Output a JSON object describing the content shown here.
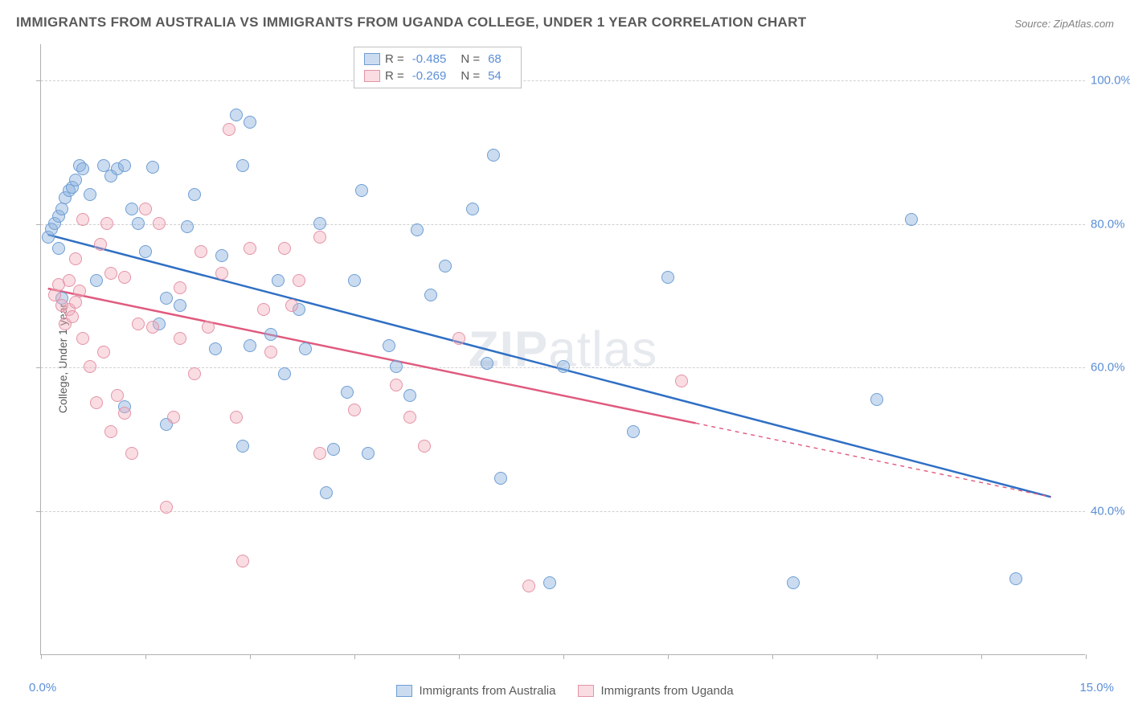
{
  "title": "IMMIGRANTS FROM AUSTRALIA VS IMMIGRANTS FROM UGANDA COLLEGE, UNDER 1 YEAR CORRELATION CHART",
  "source": "Source: ZipAtlas.com",
  "watermark_bold": "ZIP",
  "watermark_rest": "atlas",
  "ylabel": "College, Under 1 year",
  "chart": {
    "type": "scatter",
    "background_color": "#ffffff",
    "grid_color": "#d0d0d0",
    "axis_color": "#b0b0b0",
    "xlim": [
      0,
      15
    ],
    "ylim": [
      20,
      105
    ],
    "x_ticks": [
      0,
      1.5,
      3.0,
      4.5,
      6.0,
      7.5,
      9.0,
      10.5,
      12.0,
      13.5,
      15.0
    ],
    "x_tick_labels": {
      "first": "0.0%",
      "last": "15.0%"
    },
    "y_gridlines": [
      40,
      60,
      80,
      100
    ],
    "y_tick_labels": [
      "40.0%",
      "60.0%",
      "80.0%",
      "100.0%"
    ],
    "point_radius": 8,
    "point_stroke_width": 1.5,
    "trend_line_width": 2.5
  },
  "series": [
    {
      "id": "australia",
      "label": "Immigrants from Australia",
      "fill": "rgba(140,178,222,0.45)",
      "stroke": "#6f9ed4",
      "trend_color": "#2f6fc4",
      "r": -0.485,
      "n": 68,
      "trend": {
        "x1": 0.1,
        "y1": 78.5,
        "x2": 14.5,
        "y2": 42.0,
        "solid_to_x": 14.5
      },
      "points": [
        [
          0.1,
          78.0
        ],
        [
          0.15,
          79.2
        ],
        [
          0.2,
          80.0
        ],
        [
          0.25,
          81.0
        ],
        [
          0.25,
          76.5
        ],
        [
          0.3,
          82.0
        ],
        [
          0.3,
          69.5
        ],
        [
          0.35,
          83.5
        ],
        [
          0.4,
          84.5
        ],
        [
          0.45,
          85.0
        ],
        [
          0.5,
          86.0
        ],
        [
          0.55,
          88.0
        ],
        [
          0.6,
          87.5
        ],
        [
          0.7,
          84.0
        ],
        [
          0.8,
          72.0
        ],
        [
          0.9,
          88.0
        ],
        [
          1.0,
          86.5
        ],
        [
          1.1,
          87.5
        ],
        [
          1.2,
          88.0
        ],
        [
          1.3,
          82.0
        ],
        [
          1.2,
          54.5
        ],
        [
          1.4,
          80.0
        ],
        [
          1.5,
          76.0
        ],
        [
          1.6,
          87.8
        ],
        [
          1.7,
          66.0
        ],
        [
          1.8,
          69.5
        ],
        [
          1.8,
          52.0
        ],
        [
          2.0,
          68.5
        ],
        [
          2.1,
          79.5
        ],
        [
          2.2,
          84.0
        ],
        [
          2.5,
          62.5
        ],
        [
          2.6,
          75.5
        ],
        [
          2.8,
          95.0
        ],
        [
          2.9,
          88.0
        ],
        [
          2.9,
          49.0
        ],
        [
          3.0,
          63.0
        ],
        [
          3.0,
          94.0
        ],
        [
          3.3,
          64.5
        ],
        [
          3.4,
          72.0
        ],
        [
          3.5,
          59.0
        ],
        [
          3.7,
          68.0
        ],
        [
          3.8,
          62.5
        ],
        [
          4.0,
          80.0
        ],
        [
          4.1,
          42.5
        ],
        [
          4.2,
          48.5
        ],
        [
          4.4,
          56.5
        ],
        [
          4.5,
          72.0
        ],
        [
          4.6,
          84.5
        ],
        [
          4.7,
          48.0
        ],
        [
          5.0,
          63.0
        ],
        [
          5.1,
          60.0
        ],
        [
          5.3,
          56.0
        ],
        [
          5.4,
          79.0
        ],
        [
          5.6,
          70.0
        ],
        [
          5.8,
          74.0
        ],
        [
          6.2,
          82.0
        ],
        [
          6.4,
          60.5
        ],
        [
          6.5,
          89.5
        ],
        [
          6.6,
          44.5
        ],
        [
          7.3,
          30.0
        ],
        [
          7.5,
          60.0
        ],
        [
          8.5,
          51.0
        ],
        [
          9.0,
          72.5
        ],
        [
          10.8,
          30.0
        ],
        [
          12.0,
          55.5
        ],
        [
          12.5,
          80.5
        ],
        [
          14.0,
          30.5
        ]
      ]
    },
    {
      "id": "uganda",
      "label": "Immigrants from Uganda",
      "fill": "rgba(240,170,185,0.40)",
      "stroke": "#e493a6",
      "trend_color": "#e05a7e",
      "r": -0.269,
      "n": 54,
      "trend": {
        "x1": 0.1,
        "y1": 71.0,
        "x2": 14.5,
        "y2": 42.0,
        "solid_to_x": 9.4
      },
      "points": [
        [
          0.2,
          70.0
        ],
        [
          0.25,
          71.5
        ],
        [
          0.3,
          68.5
        ],
        [
          0.35,
          66.0
        ],
        [
          0.4,
          72.0
        ],
        [
          0.4,
          68.0
        ],
        [
          0.45,
          67.0
        ],
        [
          0.5,
          69.0
        ],
        [
          0.5,
          75.0
        ],
        [
          0.55,
          70.5
        ],
        [
          0.6,
          64.0
        ],
        [
          0.6,
          80.5
        ],
        [
          0.7,
          60.0
        ],
        [
          0.8,
          55.0
        ],
        [
          0.85,
          77.0
        ],
        [
          0.9,
          62.0
        ],
        [
          0.95,
          80.0
        ],
        [
          1.0,
          51.0
        ],
        [
          1.0,
          73.0
        ],
        [
          1.1,
          56.0
        ],
        [
          1.2,
          53.5
        ],
        [
          1.2,
          72.5
        ],
        [
          1.3,
          48.0
        ],
        [
          1.4,
          66.0
        ],
        [
          1.5,
          82.0
        ],
        [
          1.6,
          65.5
        ],
        [
          1.7,
          80.0
        ],
        [
          1.8,
          40.5
        ],
        [
          1.9,
          53.0
        ],
        [
          2.0,
          71.0
        ],
        [
          2.0,
          64.0
        ],
        [
          2.2,
          59.0
        ],
        [
          2.3,
          76.0
        ],
        [
          2.4,
          65.5
        ],
        [
          2.6,
          73.0
        ],
        [
          2.7,
          93.0
        ],
        [
          2.8,
          53.0
        ],
        [
          2.9,
          33.0
        ],
        [
          3.0,
          76.5
        ],
        [
          3.2,
          68.0
        ],
        [
          3.3,
          62.0
        ],
        [
          3.5,
          76.5
        ],
        [
          3.6,
          68.5
        ],
        [
          3.7,
          72.0
        ],
        [
          4.0,
          78.0
        ],
        [
          4.0,
          48.0
        ],
        [
          4.5,
          54.0
        ],
        [
          5.1,
          57.5
        ],
        [
          5.3,
          53.0
        ],
        [
          5.5,
          49.0
        ],
        [
          6.0,
          64.0
        ],
        [
          7.0,
          29.5
        ],
        [
          9.2,
          58.0
        ]
      ]
    }
  ],
  "legend_top": {
    "r_label": "R =",
    "n_label": "N ="
  }
}
